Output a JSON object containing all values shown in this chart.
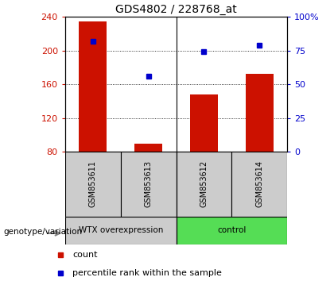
{
  "title": "GDS4802 / 228768_at",
  "samples": [
    "GSM853611",
    "GSM853613",
    "GSM853612",
    "GSM853614"
  ],
  "counts": [
    235,
    90,
    148,
    172
  ],
  "percentile_ranks": [
    82,
    56,
    74,
    79
  ],
  "ylim_left": [
    80,
    240
  ],
  "ylim_right": [
    0,
    100
  ],
  "yticks_left": [
    80,
    120,
    160,
    200,
    240
  ],
  "yticks_right": [
    0,
    25,
    50,
    75,
    100
  ],
  "yticklabels_right": [
    "0",
    "25",
    "50",
    "75",
    "100%"
  ],
  "bar_color": "#cc1100",
  "dot_color": "#0000cc",
  "group1_label": "WTX overexpression",
  "group2_label": "control",
  "group1_color": "#cccccc",
  "group2_color": "#55dd55",
  "genotype_label": "genotype/variation",
  "legend_count": "count",
  "legend_percentile": "percentile rank within the sample",
  "title_fontsize": 10,
  "tick_fontsize": 8,
  "label_fontsize": 8,
  "grid_color": "#000000",
  "divider_color": "#000000"
}
